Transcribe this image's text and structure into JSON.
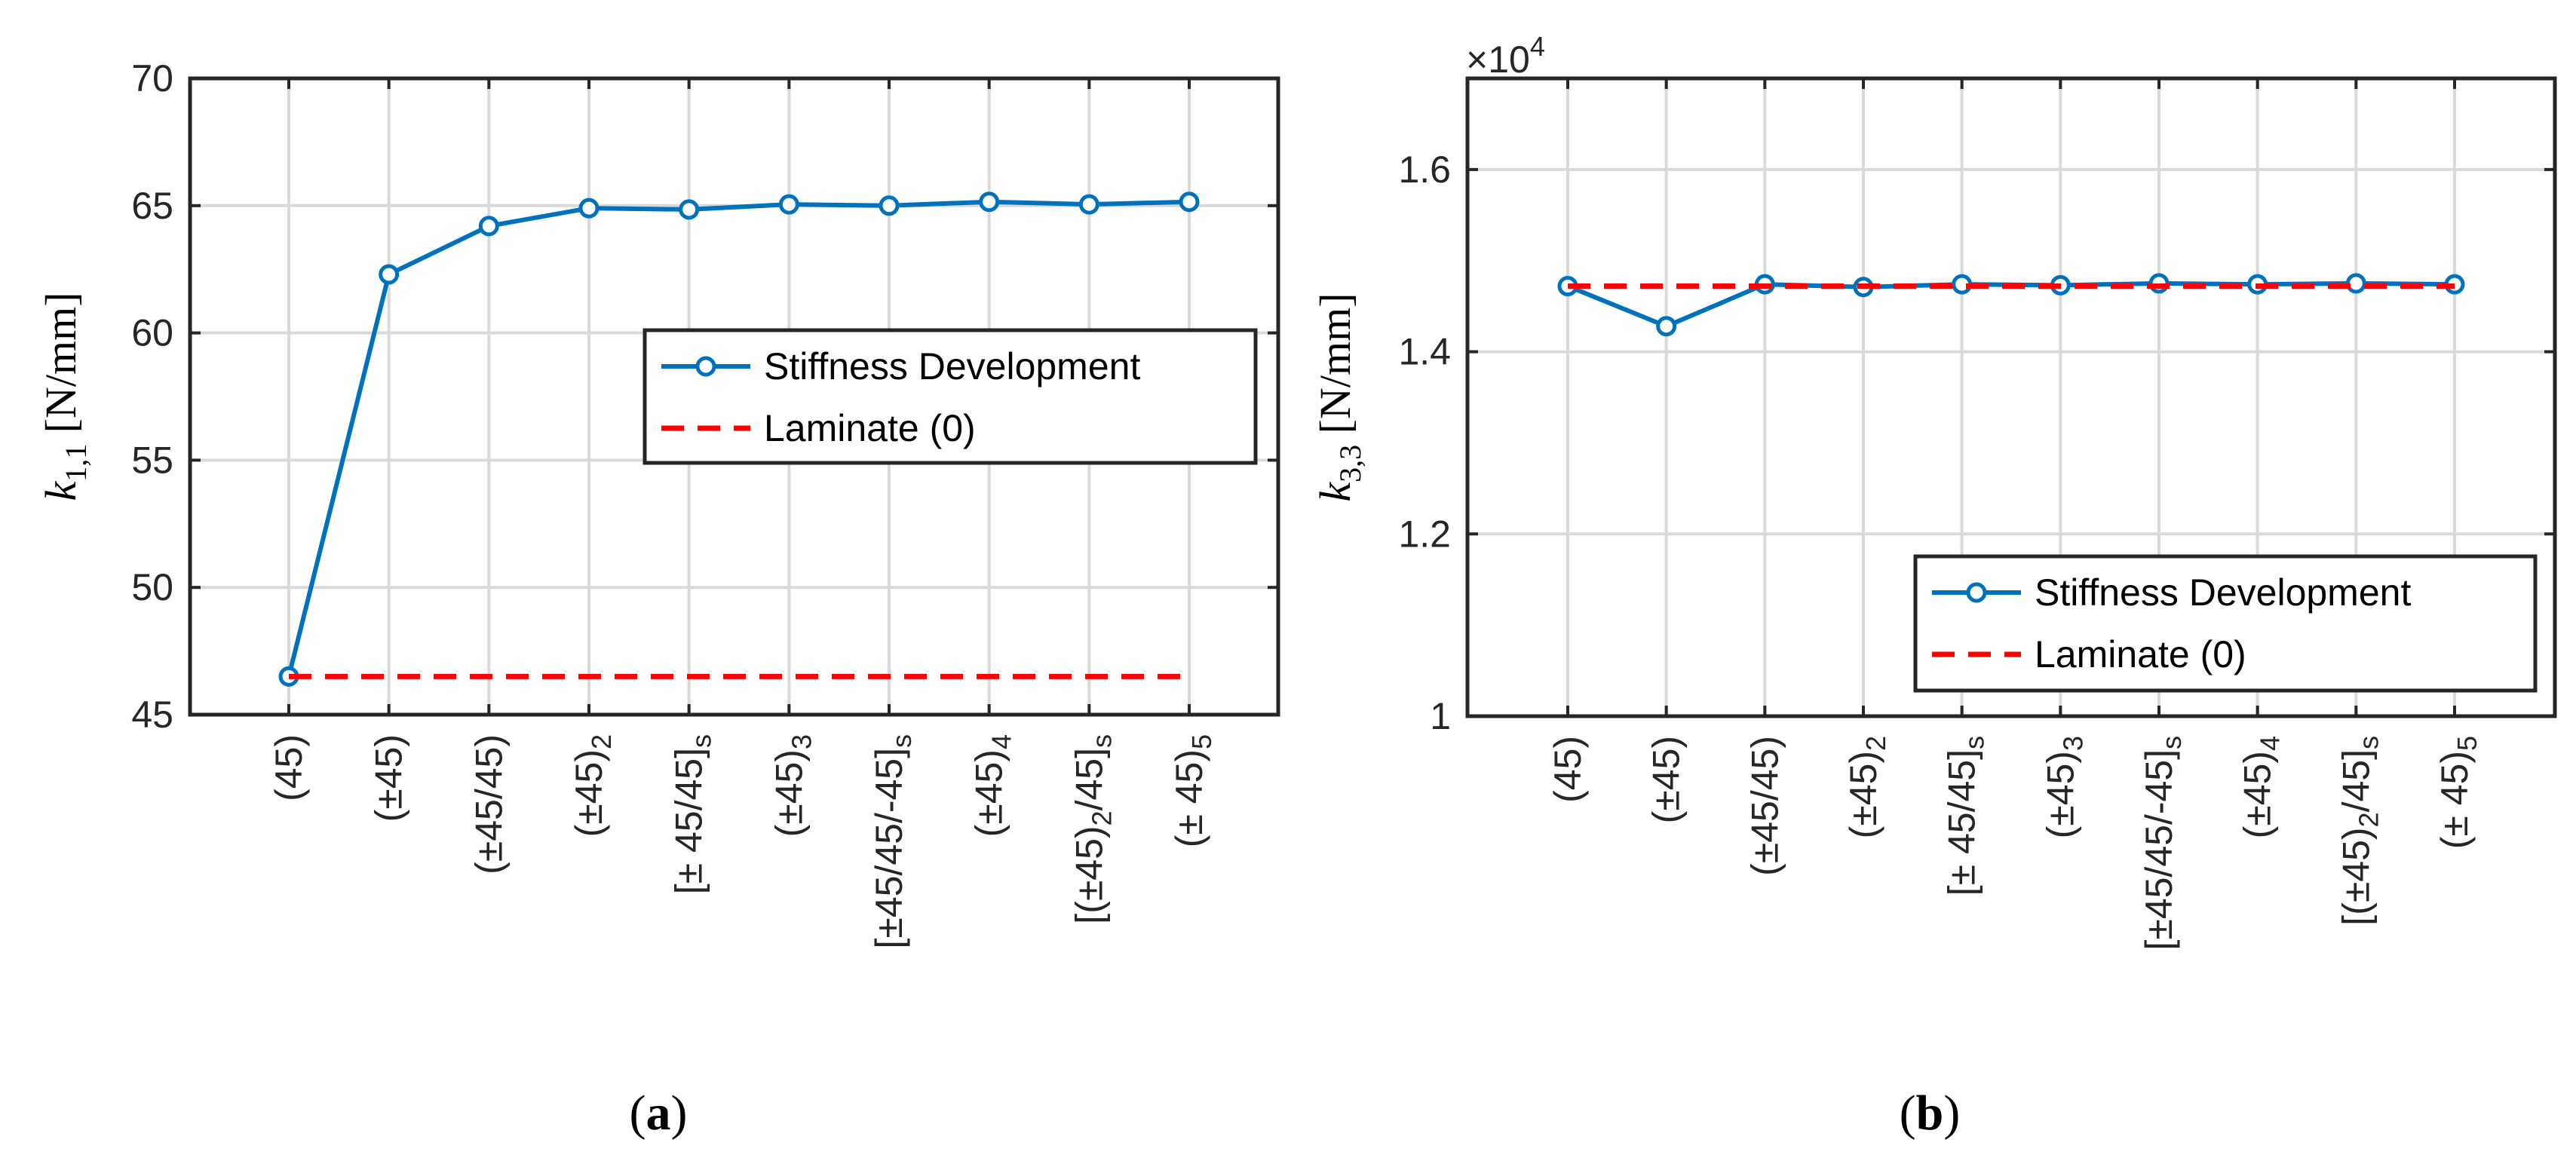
{
  "chart_data": [
    {
      "type": "line",
      "panel": "a",
      "caption": "a",
      "ylabel": {
        "symbol": "k",
        "subscript": "1,1",
        "unit": "[N/mm]"
      },
      "ylim": [
        45,
        70
      ],
      "yticks": [
        45,
        50,
        55,
        60,
        65,
        70
      ],
      "categories": [
        {
          "base": "(45)",
          "sub": "",
          "tail": ""
        },
        {
          "base": "(±45)",
          "sub": "",
          "tail": ""
        },
        {
          "base": "(±45/45)",
          "sub": "",
          "tail": ""
        },
        {
          "base": "(±45)",
          "sub": "2",
          "tail": ""
        },
        {
          "base": "[± 45/45]",
          "sub": "s",
          "tail": ""
        },
        {
          "base": "(±45)",
          "sub": "3",
          "tail": ""
        },
        {
          "base": "[±45/45/-45]",
          "sub": "s",
          "tail": ""
        },
        {
          "base": "(±45)",
          "sub": "4",
          "tail": ""
        },
        {
          "base": "[(±45)",
          "sub": "2",
          "tail": "/45]",
          "sub2": "s"
        },
        {
          "base": "(± 45)",
          "sub": "5",
          "tail": ""
        }
      ],
      "series": [
        {
          "name": "Stiffness Development",
          "style": "solid-marker",
          "color": "#0072bd",
          "values": [
            46.5,
            62.3,
            64.2,
            64.9,
            64.85,
            65.05,
            65.0,
            65.15,
            65.05,
            65.15
          ]
        },
        {
          "name": "Laminate (0)",
          "style": "dashed",
          "color": "#ff0000",
          "values": [
            46.5,
            46.5,
            46.5,
            46.5,
            46.5,
            46.5,
            46.5,
            46.5,
            46.5,
            46.5
          ]
        }
      ],
      "legend_position": "center-right",
      "grid": true
    },
    {
      "type": "line",
      "panel": "b",
      "caption": "b",
      "ylabel": {
        "symbol": "k",
        "subscript": "3,3",
        "unit": "[N/mm]"
      },
      "exponent": {
        "prefix": "×10",
        "power": "4"
      },
      "ylim": [
        1.0,
        1.7
      ],
      "yticks": [
        1.0,
        1.2,
        1.4,
        1.6
      ],
      "ytick_labels": [
        "1",
        "1.2",
        "1.4",
        "1.6"
      ],
      "categories": [
        {
          "base": "(45)",
          "sub": "",
          "tail": ""
        },
        {
          "base": "(±45)",
          "sub": "",
          "tail": ""
        },
        {
          "base": "(±45/45)",
          "sub": "",
          "tail": ""
        },
        {
          "base": "(±45)",
          "sub": "2",
          "tail": ""
        },
        {
          "base": "[± 45/45]",
          "sub": "s",
          "tail": ""
        },
        {
          "base": "(±45)",
          "sub": "3",
          "tail": ""
        },
        {
          "base": "[±45/45/-45]",
          "sub": "s",
          "tail": ""
        },
        {
          "base": "(±45)",
          "sub": "4",
          "tail": ""
        },
        {
          "base": "[(±45)",
          "sub": "2",
          "tail": "/45]",
          "sub2": "s"
        },
        {
          "base": "(± 45)",
          "sub": "5",
          "tail": ""
        }
      ],
      "series": [
        {
          "name": "Stiffness Development",
          "style": "solid-marker",
          "color": "#0072bd",
          "values": [
            1.472,
            1.428,
            1.474,
            1.471,
            1.474,
            1.473,
            1.475,
            1.474,
            1.475,
            1.474
          ]
        },
        {
          "name": "Laminate (0)",
          "style": "dashed",
          "color": "#ff0000",
          "values": [
            1.472,
            1.472,
            1.472,
            1.472,
            1.472,
            1.472,
            1.472,
            1.472,
            1.472,
            1.472
          ]
        }
      ],
      "legend_position": "bottom-right",
      "grid": true
    }
  ]
}
